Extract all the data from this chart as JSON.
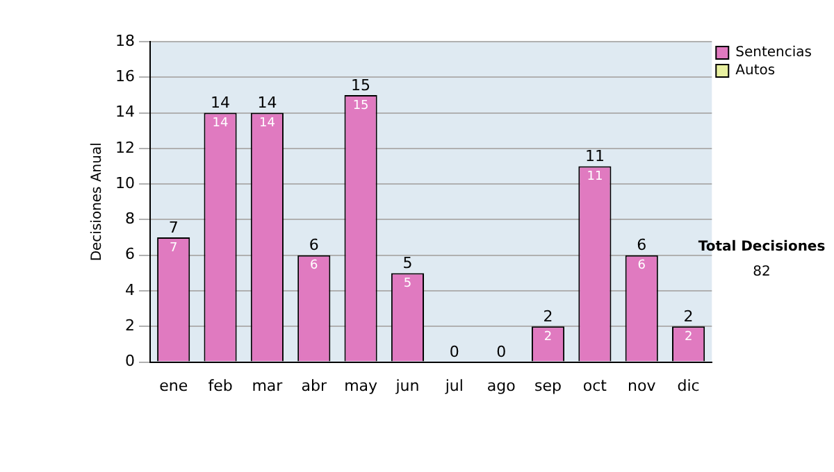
{
  "chart_data": {
    "type": "bar",
    "ylabel": "Decisiones Anual",
    "categories": [
      "ene",
      "feb",
      "mar",
      "abr",
      "may",
      "jun",
      "jul",
      "ago",
      "sep",
      "oct",
      "nov",
      "dic"
    ],
    "series": [
      {
        "name": "Sentencias",
        "color": "#e07ac0",
        "values": [
          7,
          14,
          14,
          6,
          15,
          5,
          0,
          0,
          2,
          11,
          6,
          2
        ],
        "value_labels": [
          "7",
          "14",
          "14",
          "6",
          "15",
          "5",
          null,
          null,
          "2",
          "11",
          "6",
          "2"
        ]
      },
      {
        "name": "Autos",
        "color": "#e8f0a0",
        "values": [
          0,
          0,
          0,
          0,
          0,
          0,
          0,
          0,
          0,
          0,
          0,
          0
        ]
      }
    ],
    "stacked": true,
    "totals": [
      "7",
      "14",
      "14",
      "6",
      "15",
      "5",
      "0",
      "0",
      "2",
      "11",
      "6",
      "2"
    ],
    "ylim": [
      0,
      18
    ],
    "yticks": [
      0,
      2,
      4,
      6,
      8,
      10,
      12,
      14,
      16,
      18
    ],
    "grid": "y",
    "legend": "right",
    "annotations": [
      "Total Decisiones",
      "82"
    ]
  }
}
